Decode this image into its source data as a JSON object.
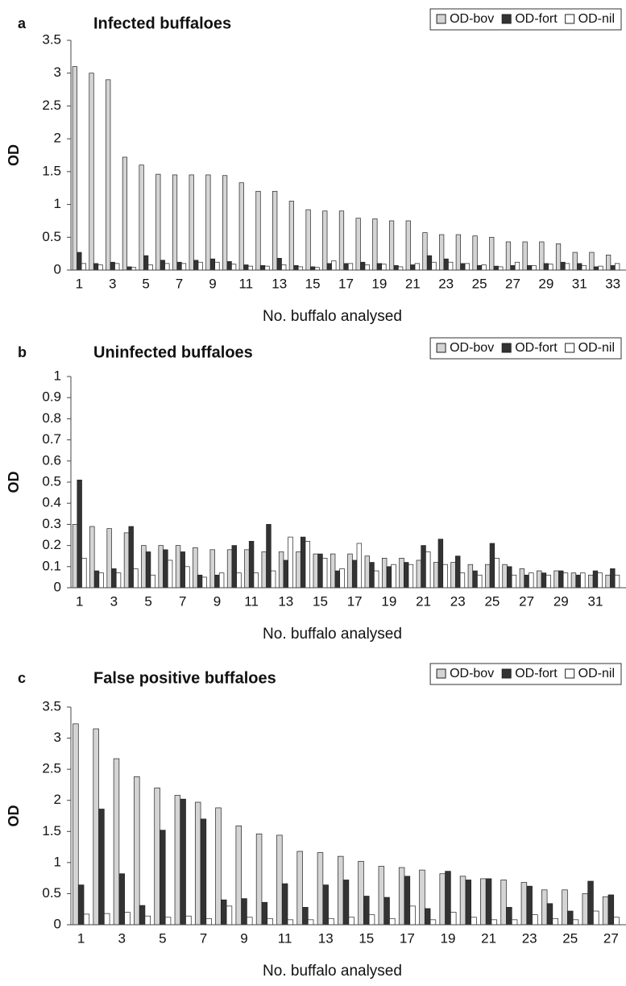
{
  "chart_data": [
    {
      "type": "bar",
      "panel_label": "a",
      "title": "Infected buffaloes",
      "x_label": "No. buffalo analysed",
      "y_label": "OD",
      "categories": [
        "1",
        null,
        "3",
        null,
        "5",
        null,
        "7",
        null,
        "9",
        null,
        "11",
        null,
        "13",
        null,
        "15",
        null,
        "17",
        null,
        "19",
        null,
        "21",
        null,
        "23",
        null,
        "25",
        null,
        "27",
        null,
        "29",
        null,
        "31",
        null,
        "33"
      ],
      "series": [
        {
          "name": "OD-bov",
          "color": "#d4d4d4",
          "values": [
            3.1,
            3.0,
            2.9,
            1.72,
            1.6,
            1.46,
            1.45,
            1.45,
            1.45,
            1.44,
            1.33,
            1.2,
            1.2,
            1.05,
            0.92,
            0.9,
            0.9,
            0.79,
            0.78,
            0.75,
            0.75,
            0.57,
            0.54,
            0.54,
            0.52,
            0.5,
            0.43,
            0.43,
            0.43,
            0.4,
            0.27,
            0.27,
            0.23
          ]
        },
        {
          "name": "OD-fort",
          "color": "#333333",
          "values": [
            0.27,
            0.1,
            0.12,
            0.05,
            0.22,
            0.15,
            0.12,
            0.15,
            0.17,
            0.13,
            0.08,
            0.07,
            0.18,
            0.07,
            0.05,
            0.1,
            0.1,
            0.12,
            0.1,
            0.07,
            0.08,
            0.22,
            0.17,
            0.1,
            0.07,
            0.06,
            0.07,
            0.07,
            0.1,
            0.12,
            0.1,
            0.05,
            0.07
          ]
        },
        {
          "name": "OD-nil",
          "color": "#ffffff",
          "values": [
            0.1,
            0.08,
            0.1,
            0.04,
            0.08,
            0.1,
            0.1,
            0.12,
            0.12,
            0.09,
            0.06,
            0.06,
            0.08,
            0.05,
            0.04,
            0.14,
            0.1,
            0.08,
            0.09,
            0.05,
            0.1,
            0.12,
            0.12,
            0.1,
            0.08,
            0.05,
            0.12,
            0.07,
            0.09,
            0.1,
            0.07,
            0.06,
            0.1
          ]
        }
      ],
      "ylim": [
        0,
        3.5
      ],
      "yticks": [
        0,
        0.5,
        1,
        1.5,
        2,
        2.5,
        3,
        3.5
      ],
      "legend": "top-right"
    },
    {
      "type": "bar",
      "panel_label": "b",
      "title": "Uninfected buffaloes",
      "x_label": "No. buffalo analysed",
      "y_label": "OD",
      "categories": [
        "1",
        null,
        "3",
        null,
        "5",
        null,
        "7",
        null,
        "9",
        null,
        "11",
        null,
        "13",
        null,
        "15",
        null,
        "17",
        null,
        "19",
        null,
        "21",
        null,
        "23",
        null,
        "25",
        null,
        "27",
        null,
        "29",
        null,
        "31",
        null
      ],
      "series": [
        {
          "name": "OD-bov",
          "color": "#d4d4d4",
          "values": [
            0.3,
            0.29,
            0.28,
            0.26,
            0.2,
            0.2,
            0.2,
            0.19,
            0.18,
            0.18,
            0.18,
            0.17,
            0.17,
            0.17,
            0.16,
            0.16,
            0.16,
            0.15,
            0.14,
            0.14,
            0.13,
            0.12,
            0.12,
            0.11,
            0.11,
            0.11,
            0.09,
            0.08,
            0.08,
            0.07,
            0.06,
            0.06
          ]
        },
        {
          "name": "OD-fort",
          "color": "#333333",
          "values": [
            0.51,
            0.08,
            0.09,
            0.29,
            0.17,
            0.18,
            0.17,
            0.06,
            0.06,
            0.2,
            0.22,
            0.3,
            0.13,
            0.24,
            0.16,
            0.08,
            0.13,
            0.12,
            0.1,
            0.12,
            0.2,
            0.23,
            0.15,
            0.08,
            0.21,
            0.1,
            0.06,
            0.07,
            0.08,
            0.06,
            0.08,
            0.09
          ]
        },
        {
          "name": "OD-nil",
          "color": "#ffffff",
          "values": [
            0.14,
            0.07,
            0.07,
            0.09,
            0.06,
            0.13,
            0.1,
            0.05,
            0.07,
            0.07,
            0.07,
            0.08,
            0.24,
            0.22,
            0.14,
            0.09,
            0.21,
            0.08,
            0.11,
            0.11,
            0.17,
            0.11,
            0.07,
            0.06,
            0.14,
            0.06,
            0.07,
            0.06,
            0.07,
            0.07,
            0.07,
            0.06
          ]
        }
      ],
      "ylim": [
        0,
        1
      ],
      "yticks": [
        0,
        0.1,
        0.2,
        0.3,
        0.4,
        0.5,
        0.6,
        0.7,
        0.8,
        0.9,
        1
      ],
      "legend": "top-right"
    },
    {
      "type": "bar",
      "panel_label": "c",
      "title": "False positive buffaloes",
      "x_label": "No. buffalo analysed",
      "y_label": "OD",
      "categories": [
        "1",
        null,
        "3",
        null,
        "5",
        null,
        "7",
        null,
        "9",
        null,
        "11",
        null,
        "13",
        null,
        "15",
        null,
        "17",
        null,
        "19",
        null,
        "21",
        null,
        "23",
        null,
        "25",
        null,
        "27"
      ],
      "series": [
        {
          "name": "OD-bov",
          "color": "#d4d4d4",
          "values": [
            3.23,
            3.15,
            2.67,
            2.38,
            2.2,
            2.08,
            1.97,
            1.88,
            1.59,
            1.46,
            1.44,
            1.18,
            1.16,
            1.1,
            1.02,
            0.94,
            0.92,
            0.88,
            0.82,
            0.78,
            0.74,
            0.72,
            0.68,
            0.56,
            0.56,
            0.5,
            0.45
          ]
        },
        {
          "name": "OD-fort",
          "color": "#333333",
          "values": [
            0.64,
            1.86,
            0.82,
            0.31,
            1.52,
            2.02,
            1.7,
            0.4,
            0.42,
            0.36,
            0.66,
            0.28,
            0.64,
            0.72,
            0.46,
            0.44,
            0.78,
            0.26,
            0.86,
            0.72,
            0.74,
            0.28,
            0.62,
            0.34,
            0.22,
            0.7,
            0.48
          ]
        },
        {
          "name": "OD-nil",
          "color": "#ffffff",
          "values": [
            0.17,
            0.18,
            0.2,
            0.14,
            0.12,
            0.14,
            0.1,
            0.3,
            0.12,
            0.1,
            0.08,
            0.08,
            0.1,
            0.12,
            0.16,
            0.1,
            0.3,
            0.08,
            0.2,
            0.12,
            0.08,
            0.08,
            0.16,
            0.1,
            0.08,
            0.22,
            0.12
          ]
        }
      ],
      "ylim": [
        0,
        3.5
      ],
      "yticks": [
        0,
        0.5,
        1,
        1.5,
        2,
        2.5,
        3,
        3.5
      ],
      "legend": "top-right"
    }
  ]
}
